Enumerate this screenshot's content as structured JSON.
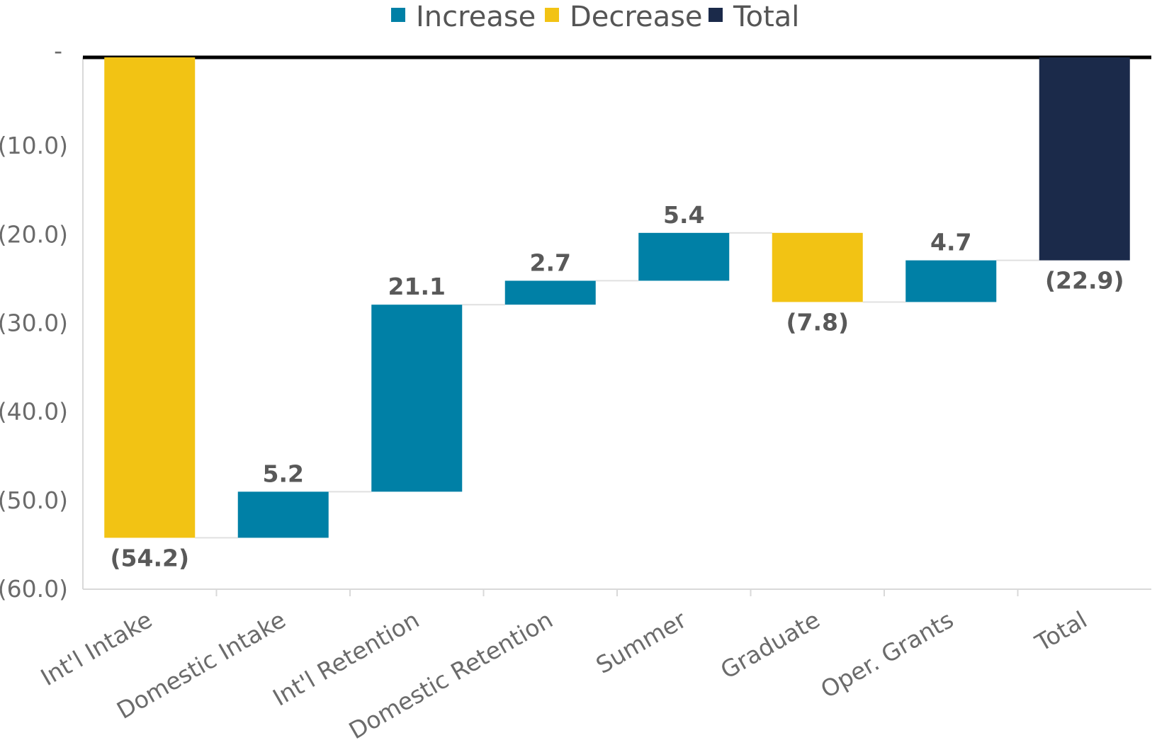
{
  "chart_data": {
    "type": "bar",
    "subtype": "waterfall",
    "title": "",
    "xlabel": "",
    "ylabel": "",
    "ylim": [
      -60,
      0
    ],
    "y_ticks": [
      0,
      -10,
      -20,
      -30,
      -40,
      -50,
      -60
    ],
    "y_tick_labels": [
      "-",
      "(10.0)",
      "(20.0)",
      "(30.0)",
      "(40.0)",
      "(50.0)",
      "(60.0)"
    ],
    "legend": {
      "position": "top",
      "items": [
        {
          "label": "Increase",
          "color": "#0080A6"
        },
        {
          "label": "Decrease",
          "color": "#F2C314"
        },
        {
          "label": "Total",
          "color": "#1B2A4A"
        }
      ]
    },
    "categories": [
      "Int'l Intake",
      "Domestic Intake",
      "Int'l Retention",
      "Domestic Retention",
      "Summer",
      "Graduate",
      "Oper. Grants",
      "Total"
    ],
    "values": [
      -54.2,
      5.2,
      21.1,
      2.7,
      5.4,
      -7.8,
      4.7,
      -22.9
    ],
    "kinds": [
      "decrease",
      "increase",
      "increase",
      "increase",
      "increase",
      "decrease",
      "increase",
      "total"
    ],
    "data_labels": [
      "(54.2)",
      "5.2",
      "21.1",
      "2.7",
      "5.4",
      "(7.8)",
      "4.7",
      "(22.9)"
    ],
    "grid": false
  }
}
